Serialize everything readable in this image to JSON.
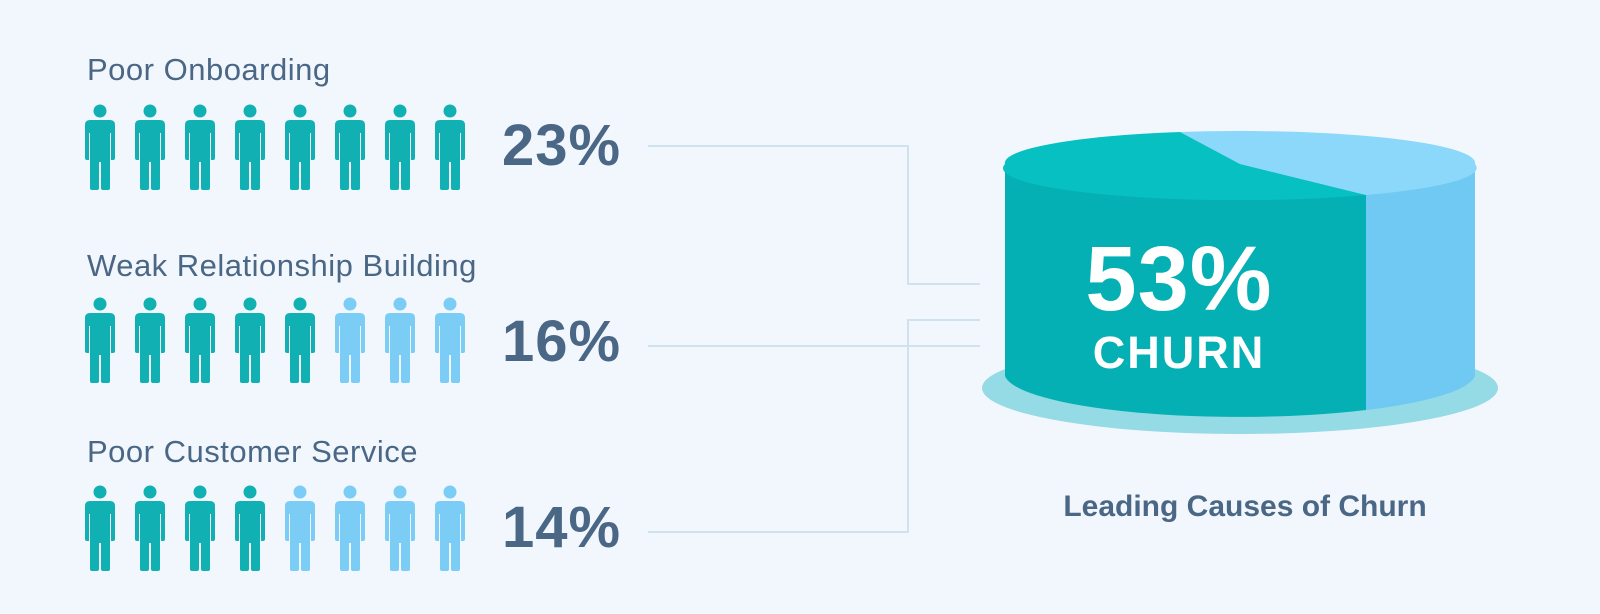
{
  "chart_data": {
    "type": "pie",
    "title": "Leading Causes of Churn",
    "total": {
      "value": 53,
      "label": "53%",
      "unit_label": "CHURN"
    },
    "categories": [
      "Poor Onboarding",
      "Weak Relationship Building",
      "Poor Customer Service"
    ],
    "values": [
      23,
      16,
      14
    ],
    "value_labels": [
      "23%",
      "16%",
      "14%"
    ],
    "pictograph": {
      "icons_per_row": 8,
      "highlighted_icons": [
        8,
        5,
        4
      ]
    }
  },
  "colors": {
    "background": "#f2f7fd",
    "highlight": "#11b1b3",
    "muted": "#7ccdf6",
    "text": "#4a6785",
    "connector": "#cfe2ee",
    "cake_side": "#05b0b4",
    "cake_top": "#06c0c2",
    "cake_slice_top": "#8bd8fb",
    "cake_slice_side": "#70c9f2",
    "plate": "#94dbe6"
  }
}
